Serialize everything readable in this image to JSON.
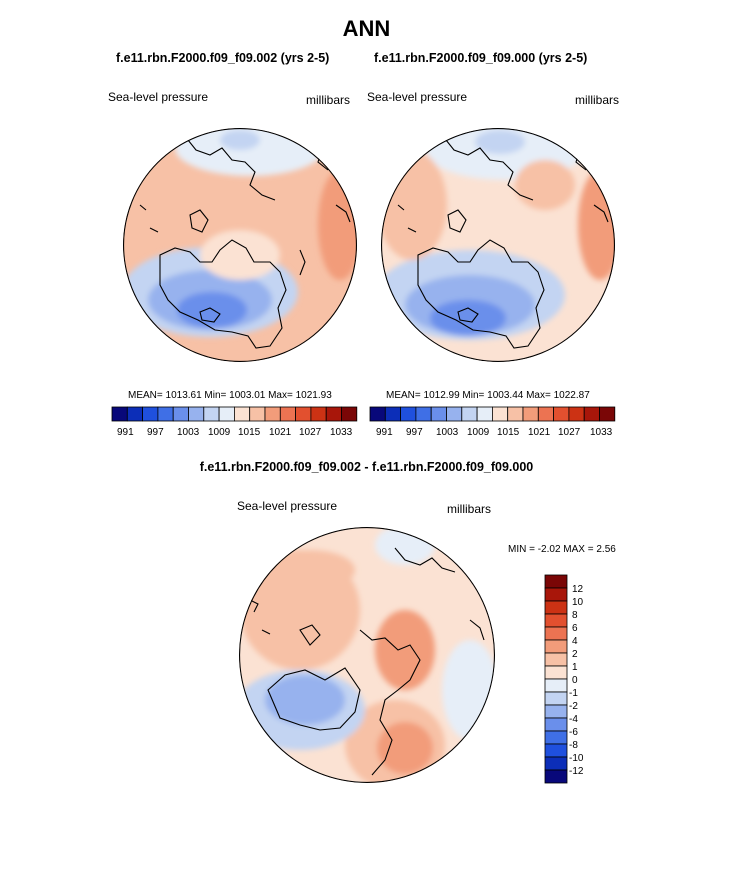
{
  "page": {
    "title": "ANN"
  },
  "panels": [
    {
      "case_title": "f.e11.rbn.F2000.f09_f09.002 (yrs 2-5)",
      "variable": "Sea-level pressure",
      "units": "millibars",
      "stats": "MEAN= 1013.61  Min= 1003.01  Max= 1021.93",
      "colorbar_labels": [
        "991",
        "997",
        "1003",
        "1009",
        "1015",
        "1021",
        "1027",
        "1033"
      ]
    },
    {
      "case_title": "f.e11.rbn.F2000.f09_f09.000 (yrs 2-5)",
      "variable": "Sea-level pressure",
      "units": "millibars",
      "stats": "MEAN= 1012.99  Min= 1003.44  Max= 1022.87",
      "colorbar_labels": [
        "991",
        "997",
        "1003",
        "1009",
        "1015",
        "1021",
        "1027",
        "1033"
      ]
    }
  ],
  "difference": {
    "title": "f.e11.rbn.F2000.f09_f09.002 - f.e11.rbn.F2000.f09_f09.000",
    "variable": "Sea-level pressure",
    "units": "millibars",
    "stats": "MIN =  -2.02 MAX =   2.56",
    "colorbar_labels": [
      "12",
      "10",
      "8",
      "6",
      "4",
      "2",
      "1",
      "0",
      "-1",
      "-2",
      "-4",
      "-6",
      "-8",
      "-10",
      "-12"
    ]
  },
  "colors": {
    "abs_scale": [
      "#08087a",
      "#0c2eb8",
      "#1f50de",
      "#3f6fe6",
      "#6a8feb",
      "#97b2ee",
      "#c3d4f2",
      "#e6eef8",
      "#fbe2d3",
      "#f7c1a6",
      "#f29c7a",
      "#ec7352",
      "#e2502f",
      "#cc3214",
      "#a8160a",
      "#7a0606"
    ],
    "diff_scale": [
      "#7a0606",
      "#a8160a",
      "#cc3214",
      "#e2502f",
      "#ec7352",
      "#f29c7a",
      "#f7c1a6",
      "#fbe2d3",
      "#e6eef8",
      "#c3d4f2",
      "#97b2ee",
      "#6a8feb",
      "#3f6fe6",
      "#1f50de",
      "#0c2eb8",
      "#08087a"
    ]
  }
}
